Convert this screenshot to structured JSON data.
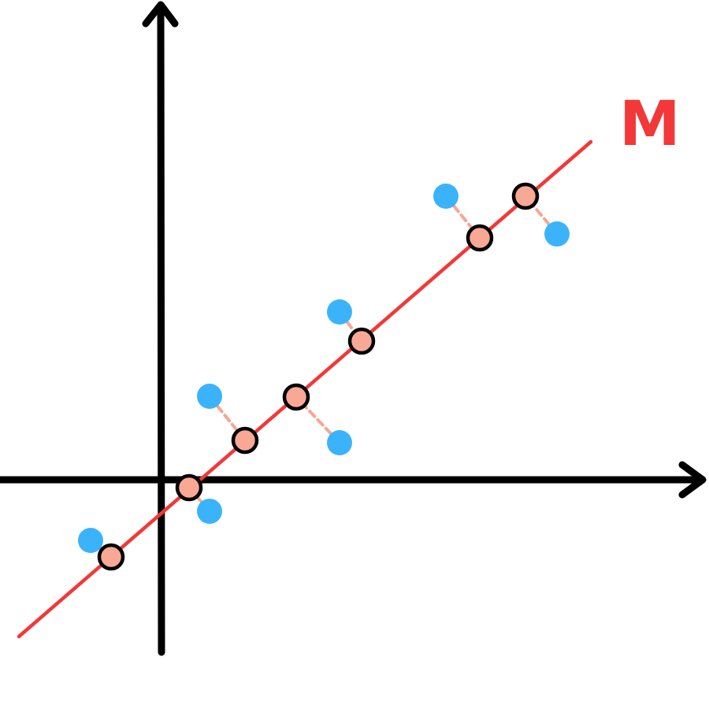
{
  "line_label": "M",
  "colors": {
    "axis": "#000000",
    "line": "#f23838",
    "point": "#3bb3fb",
    "projection": "#f9a896",
    "projection_stroke": "#000000",
    "connector": "#f6a791"
  },
  "points": [
    {
      "point": [
        115,
        686
      ],
      "projection": [
        141,
        707
      ]
    },
    {
      "point": [
        266,
        649
      ],
      "projection": [
        240,
        619
      ]
    },
    {
      "point": [
        266,
        503
      ],
      "projection": [
        311,
        559
      ]
    },
    {
      "point": [
        431,
        562
      ],
      "projection": [
        376,
        504
      ]
    },
    {
      "point": [
        431,
        396
      ],
      "projection": [
        459,
        433
      ]
    },
    {
      "point": [
        566,
        249
      ],
      "projection": [
        609,
        302
      ]
    },
    {
      "point": [
        707,
        297
      ],
      "projection": [
        667,
        249
      ]
    }
  ]
}
